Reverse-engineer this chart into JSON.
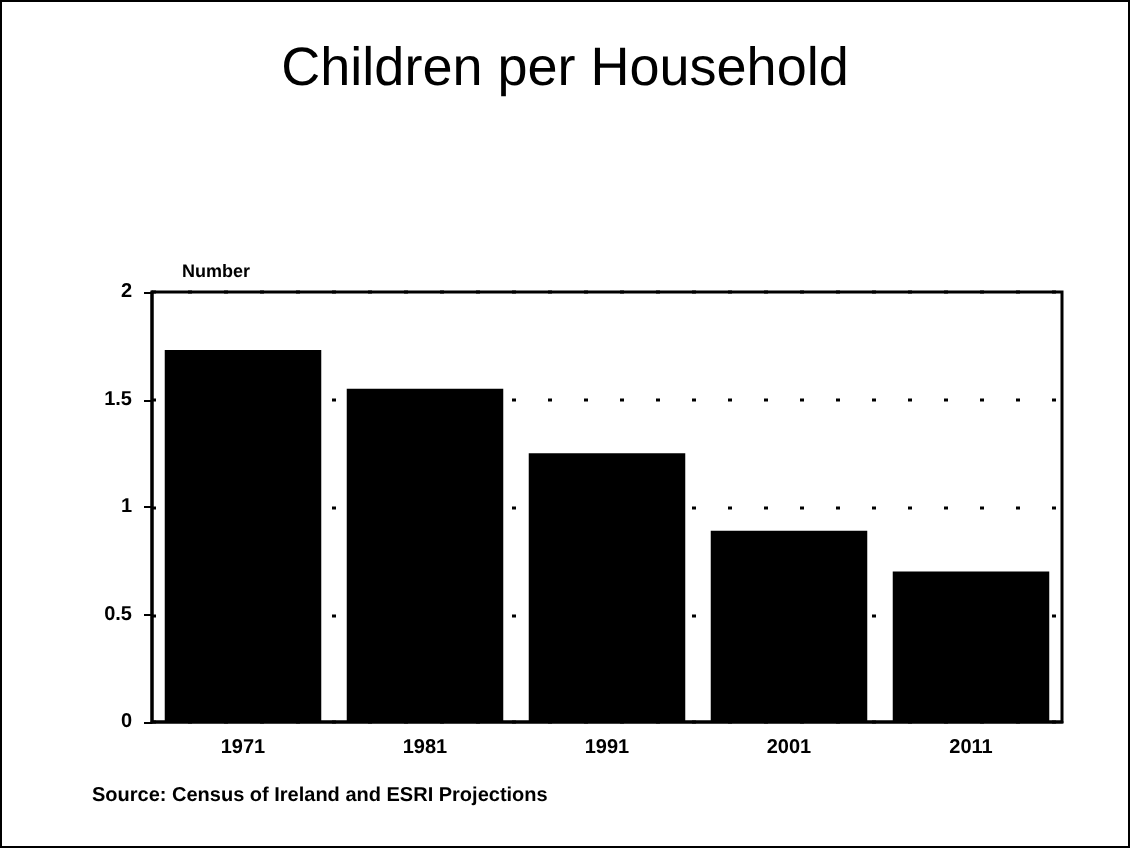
{
  "chart_data": {
    "type": "bar",
    "title": "Children per Household",
    "ylabel": "Number",
    "categories": [
      "1971",
      "1981",
      "1991",
      "2001",
      "2011"
    ],
    "values": [
      1.73,
      1.55,
      1.25,
      0.89,
      0.7
    ],
    "color": "#000000",
    "ylim": [
      0,
      2
    ],
    "yticks": [
      0,
      0.5,
      1,
      1.5,
      2
    ],
    "grid": "y",
    "annotations": [
      "Source: Census of Ireland and ESRI Projections"
    ]
  }
}
